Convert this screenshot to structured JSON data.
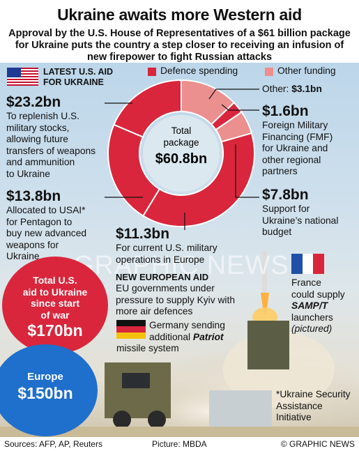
{
  "title": "Ukraine awaits more Western aid",
  "subtitle": "Approval by the U.S. House of Representatives of a $61 billion package for Ukraine puts the country a step closer to receiving an infusion of new firepower to fight Russian attacks",
  "heading": {
    "line1": "LATEST U.S. AID",
    "line2": "FOR UKRAINE"
  },
  "legend": [
    {
      "label": "Defence spending",
      "color": "#d9263c"
    },
    {
      "label": "Other funding",
      "color": "#ec8f8f"
    }
  ],
  "donut": {
    "center_label_1": "Total",
    "center_label_2": "package",
    "center_value": "$60.8bn",
    "segments": [
      {
        "key": "ukraine_budget",
        "value": 7.8,
        "color": "#ec8f8f"
      },
      {
        "key": "fmf",
        "value": 1.6,
        "color": "#d9263c"
      },
      {
        "key": "other",
        "value": 3.1,
        "color": "#ec8f8f"
      },
      {
        "key": "replenish",
        "value": 23.2,
        "color": "#d9263c"
      },
      {
        "key": "usai",
        "value": 13.8,
        "color": "#d9263c"
      },
      {
        "key": "europe_ops",
        "value": 11.3,
        "color": "#d9263c"
      }
    ]
  },
  "items": {
    "replenish": {
      "amount": "$23.2bn",
      "text": [
        "To replenish U.S.",
        "military stocks,",
        "allowing future",
        "transfers of weapons",
        "and ammunition",
        "to Ukraine"
      ]
    },
    "usai": {
      "amount": "$13.8bn",
      "text": [
        "Allocated to USAI*",
        "for Pentagon to",
        "buy new advanced",
        "weapons for",
        "Ukraine"
      ]
    },
    "europe_ops": {
      "amount": "$11.3bn",
      "text": [
        "For current U.S. military",
        "operations in Europe"
      ]
    },
    "other": {
      "label": "Other:",
      "amount": "$3.1bn"
    },
    "fmf": {
      "amount": "$1.6bn",
      "text": [
        "Foreign Military",
        "Financing (FMF)",
        "for Ukraine and",
        "other regional",
        "partners"
      ]
    },
    "ukraine_budget": {
      "amount": "$7.8bn",
      "text": [
        "Support for",
        "Ukraine’s national",
        "budget"
      ]
    }
  },
  "european": {
    "heading": "NEW EUROPEAN AID",
    "text": [
      "EU governments under",
      "pressure to supply Kyiv with",
      "more air defences"
    ]
  },
  "france": {
    "l1": "France",
    "l2": "could supply",
    "l3": "SAMP/T",
    "l4": "launchers",
    "l5": "(pictured)"
  },
  "germany": {
    "l1": "Germany sending",
    "l2a": "additional ",
    "l2b": "Patriot",
    "l3": "missile system"
  },
  "totals": {
    "us": {
      "l1": "Total U.S.",
      "l2": "aid to Ukraine",
      "l3": "since start",
      "l4": "of war",
      "value": "$170bn",
      "color": "#d9263c"
    },
    "europe": {
      "l1": "Europe",
      "value": "$150bn",
      "color": "#1f6fcc"
    }
  },
  "footnote": [
    "*Ukraine Security",
    "Assistance",
    "Initiative"
  ],
  "watermark": {
    "logo": "GN",
    "text": "GRAPHIC NEWS"
  },
  "footer": {
    "sources": "Sources: AFP, AP, Reuters",
    "picture": "Picture: MBDA",
    "copyright": "© GRAPHIC NEWS"
  }
}
